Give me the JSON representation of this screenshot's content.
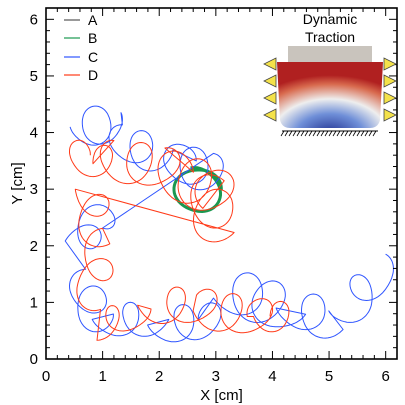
{
  "chart_data": {
    "type": "line",
    "xlabel": "X [cm]",
    "ylabel": "Y [cm]",
    "xlim": [
      0,
      6.2
    ],
    "ylim": [
      0,
      6.2
    ],
    "xticks": [
      0,
      1,
      2,
      3,
      4,
      5,
      6
    ],
    "yticks": [
      0,
      1,
      2,
      3,
      4,
      5,
      6
    ],
    "xtick_labels": [
      "0",
      "1",
      "2",
      "3",
      "4",
      "5",
      "6"
    ],
    "ytick_labels": [
      "0",
      "1",
      "2",
      "3",
      "4",
      "5",
      "6"
    ],
    "legend_placement": "top-left",
    "inset": {
      "title_line1": "Dynamic",
      "title_line2": "Traction"
    },
    "series": [
      {
        "name": "A",
        "color": "#555555",
        "loops": []
      },
      {
        "name": "B",
        "color": "#1a9850",
        "loops": [
          {
            "center": [
              2.68,
              2.98
            ],
            "radius": 0.39,
            "start_deg": 0,
            "turns": 1.3,
            "drift": [
              0.0,
              0.0
            ]
          }
        ]
      },
      {
        "name": "C",
        "color": "#2f55ff",
        "loops": [
          {
            "center": [
              0.75,
              4.1
            ],
            "radius": 0.32,
            "start_deg": 180,
            "turns": 1.6,
            "drift": [
              0.3,
              0.05
            ]
          },
          {
            "center": [
              1.35,
              3.85
            ],
            "radius": 0.3,
            "start_deg": 90,
            "turns": 1.8,
            "drift": [
              0.6,
              -0.25
            ]
          },
          {
            "center": [
              2.3,
              3.5
            ],
            "radius": 0.33,
            "start_deg": 0,
            "turns": 2.2,
            "drift": [
              0.55,
              -0.2
            ]
          },
          {
            "center": [
              1.0,
              2.6
            ],
            "radius": 0.28,
            "start_deg": 270,
            "turns": 1.7,
            "drift": [
              -0.4,
              -0.6
            ]
          },
          {
            "center": [
              0.7,
              1.3
            ],
            "radius": 0.3,
            "start_deg": 90,
            "turns": 1.8,
            "drift": [
              0.2,
              -0.6
            ]
          },
          {
            "center": [
              1.1,
              0.7
            ],
            "radius": 0.28,
            "start_deg": 180,
            "turns": 1.5,
            "drift": [
              0.8,
              0.0
            ]
          },
          {
            "center": [
              2.1,
              0.6
            ],
            "radius": 0.3,
            "start_deg": 180,
            "turns": 2.0,
            "drift": [
              0.9,
              0.1
            ]
          },
          {
            "center": [
              3.3,
              1.2
            ],
            "radius": 0.38,
            "start_deg": 200,
            "turns": 2.4,
            "drift": [
              0.9,
              -0.3
            ]
          },
          {
            "center": [
              4.4,
              0.9
            ],
            "radius": 0.33,
            "start_deg": 180,
            "turns": 1.4,
            "drift": [
              0.6,
              -0.2
            ]
          },
          {
            "center": [
              5.3,
              0.85
            ],
            "radius": 0.3,
            "start_deg": 180,
            "turns": 1.7,
            "drift": [
              0.6,
              0.7
            ]
          }
        ]
      },
      {
        "name": "D",
        "color": "#ff3a18",
        "loops": [
          {
            "center": [
              0.5,
              3.6
            ],
            "radius": 0.28,
            "start_deg": 0,
            "turns": 1.5,
            "drift": [
              0.6,
              -0.15
            ]
          },
          {
            "center": [
              1.2,
              3.5
            ],
            "radius": 0.35,
            "start_deg": 90,
            "turns": 2.0,
            "drift": [
              0.9,
              -0.1
            ]
          },
          {
            "center": [
              2.2,
              3.3
            ],
            "radius": 0.4,
            "start_deg": 0,
            "turns": 2.6,
            "drift": [
              0.9,
              -0.4
            ]
          },
          {
            "center": [
              2.9,
              2.9
            ],
            "radius": 0.38,
            "start_deg": 45,
            "turns": 1.8,
            "drift": [
              0.1,
              -0.5
            ]
          },
          {
            "center": [
              0.8,
              3.0
            ],
            "radius": 0.3,
            "start_deg": 180,
            "turns": 1.4,
            "drift": [
              0.1,
              -0.8
            ]
          },
          {
            "center": [
              1.0,
              2.0
            ],
            "radius": 0.3,
            "start_deg": 90,
            "turns": 1.6,
            "drift": [
              -0.2,
              -0.9
            ]
          },
          {
            "center": [
              0.9,
              0.6
            ],
            "radius": 0.25,
            "start_deg": 270,
            "turns": 1.3,
            "drift": [
              0.7,
              0.2
            ]
          },
          {
            "center": [
              1.9,
              0.95
            ],
            "radius": 0.3,
            "start_deg": 180,
            "turns": 1.9,
            "drift": [
              1.0,
              0.0
            ]
          },
          {
            "center": [
              2.9,
              0.85
            ],
            "radius": 0.32,
            "start_deg": 180,
            "turns": 2.0,
            "drift": [
              1.0,
              -0.1
            ]
          },
          {
            "center": [
              3.9,
              0.75
            ],
            "radius": 0.25,
            "start_deg": 180,
            "turns": 1.0,
            "drift": [
              0.3,
              0.0
            ]
          }
        ]
      }
    ]
  }
}
